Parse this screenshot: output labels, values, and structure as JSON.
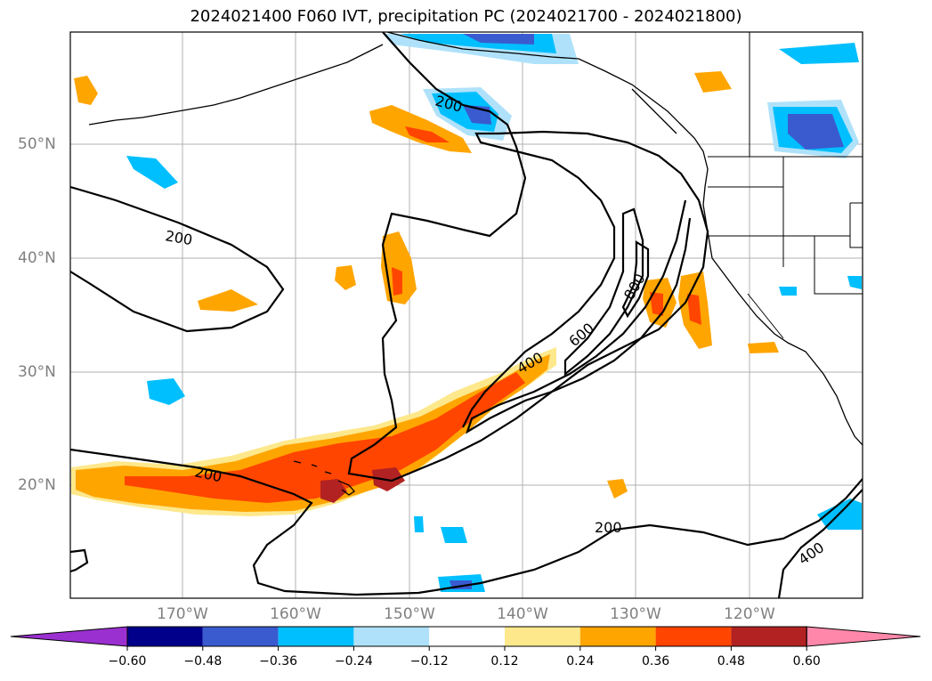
{
  "title": "2024021400 F060 IVT, precipitation PC (2024021700 - 2024021800)",
  "latitude_labels": [
    "50°N",
    "40°N",
    "30°N",
    "20°N"
  ],
  "longitude_labels": [
    "170°W",
    "160°W",
    "150°W",
    "140°W",
    "130°W",
    "120°W"
  ],
  "ivt_contour_labels": [
    "200",
    "200",
    "200",
    "200",
    "400",
    "400",
    "600",
    "800"
  ],
  "colorbar": {
    "tick_labels": [
      "−0.60",
      "−0.48",
      "−0.36",
      "−0.24",
      "−0.12",
      "0.12",
      "0.24",
      "0.36",
      "0.48",
      "0.60"
    ],
    "colors": [
      "#9b30d0",
      "#00008b",
      "#3a5bd0",
      "#00bfff",
      "#afe2fa",
      "#ffffff",
      "#fde88c",
      "#ffa500",
      "#ff4500",
      "#b22222",
      "#ff88aa"
    ]
  },
  "colors": {
    "coast": "#000000",
    "grid": "#b0b0b0",
    "contour": "#000000"
  }
}
